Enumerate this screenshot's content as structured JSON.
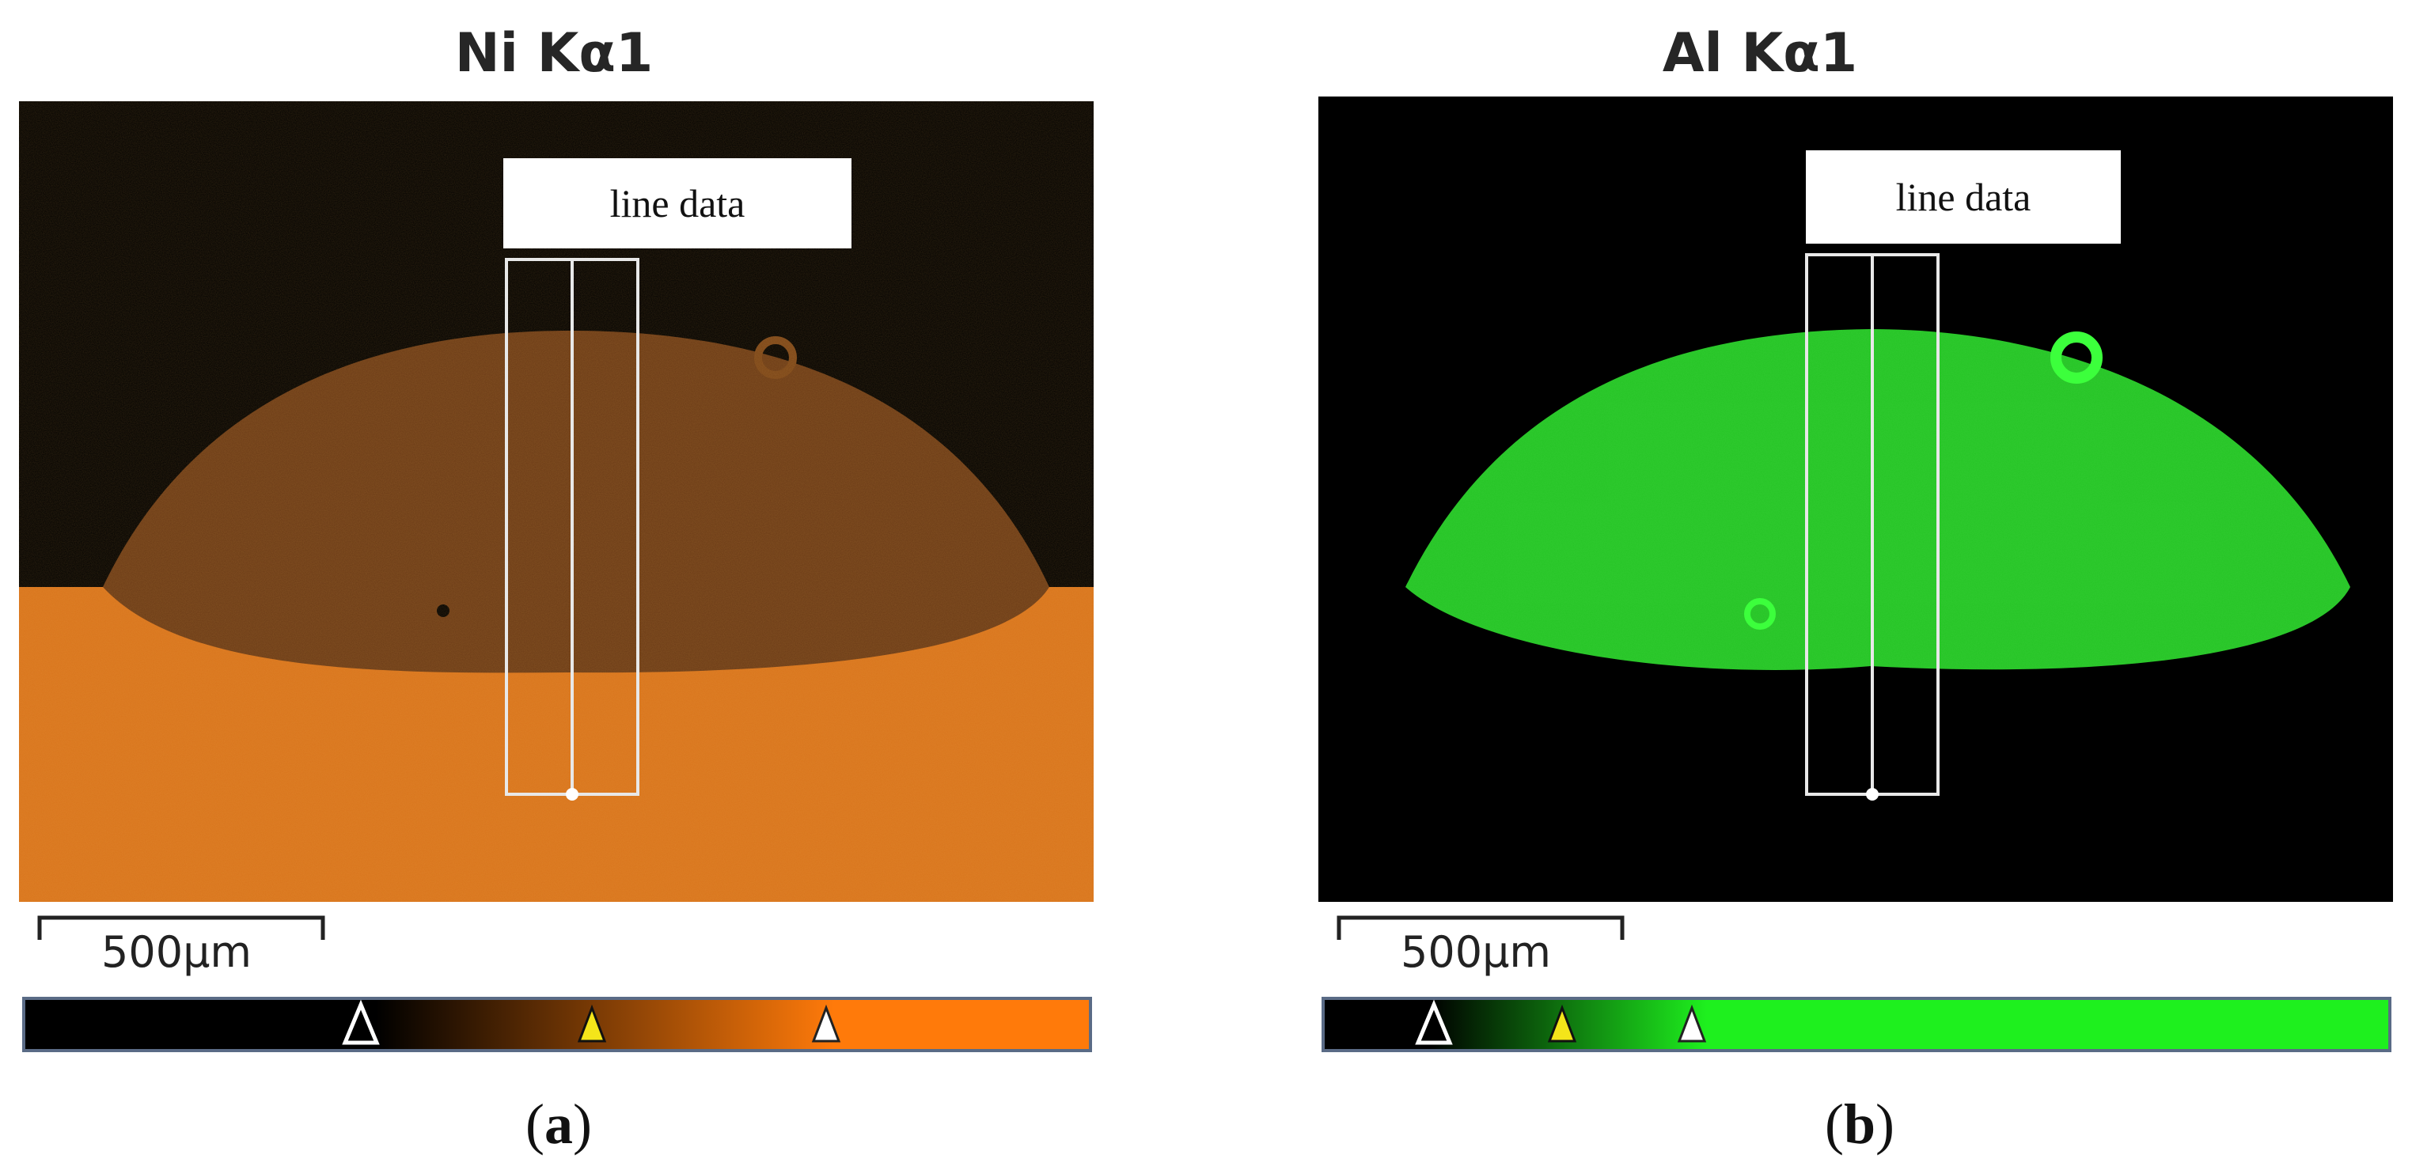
{
  "panels": [
    {
      "title": "Ni Kα1",
      "line_label": "line data",
      "scale_label": "500µm",
      "colors": {
        "ramp_end": "#ff7a0a",
        "map_fill": "#d9741c",
        "bead_fill": "#6a3a16"
      },
      "caption": "a",
      "colorbar_markers": [
        "white-triangle-marker",
        "yellow-triangle-marker",
        "white-triangle-marker"
      ]
    },
    {
      "title": "Al Kα1",
      "line_label": "line data",
      "scale_label": "500µm",
      "colors": {
        "ramp_end": "#1ef01e",
        "map_fill": "#000000",
        "bead_fill": "#25d425"
      },
      "caption": "b",
      "colorbar_markers": [
        "white-triangle-marker",
        "yellow-triangle-marker",
        "white-triangle-marker"
      ]
    }
  ]
}
